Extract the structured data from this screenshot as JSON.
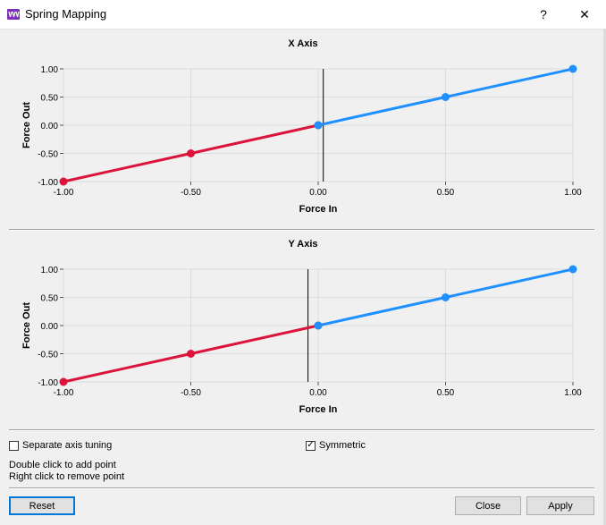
{
  "window": {
    "title": "Spring Mapping",
    "help_label": "?",
    "close_label": "✕",
    "icon": "app-logo-icon"
  },
  "colors": {
    "negative_series": "#dc143c",
    "positive_series": "#1e90ff",
    "grid": "#dcdcdc",
    "default_button_border": "#0078d7"
  },
  "chart_data": [
    {
      "type": "line",
      "title": "X Axis",
      "xlabel": "Force In",
      "ylabel": "Force Out",
      "xlim": [
        -1,
        1
      ],
      "ylim": [
        -1,
        1
      ],
      "xticks": [
        "-1.00",
        "-0.50",
        "0.00",
        "0.50",
        "1.00"
      ],
      "yticks": [
        "1.00",
        "0.50",
        "0.00",
        "-0.50",
        "-1.00"
      ],
      "grid": true,
      "cursor_x": 0.02,
      "series": [
        {
          "color": "#dc143c",
          "x": [
            -1,
            -0.5,
            0
          ],
          "y": [
            -1,
            -0.5,
            0
          ]
        },
        {
          "color": "#1e90ff",
          "x": [
            0,
            0.5,
            1
          ],
          "y": [
            0,
            0.5,
            1
          ]
        }
      ]
    },
    {
      "type": "line",
      "title": "Y Axis",
      "xlabel": "Force In",
      "ylabel": "Force Out",
      "xlim": [
        -1,
        1
      ],
      "ylim": [
        -1,
        1
      ],
      "xticks": [
        "-1.00",
        "-0.50",
        "0.00",
        "0.50",
        "1.00"
      ],
      "yticks": [
        "1.00",
        "0.50",
        "0.00",
        "-0.50",
        "-1.00"
      ],
      "grid": true,
      "cursor_x": -0.04,
      "series": [
        {
          "color": "#dc143c",
          "x": [
            -1,
            -0.5,
            0
          ],
          "y": [
            -1,
            -0.5,
            0
          ]
        },
        {
          "color": "#1e90ff",
          "x": [
            0,
            0.5,
            1
          ],
          "y": [
            0,
            0.5,
            1
          ]
        }
      ]
    }
  ],
  "options": {
    "separate_axis": {
      "label": "Separate axis tuning",
      "checked": false,
      "mark": ""
    },
    "symmetric": {
      "label": "Symmetric",
      "checked": true,
      "mark": "✓"
    }
  },
  "hints": {
    "line1": "Double click to add point",
    "line2": "Right click to remove point"
  },
  "buttons": {
    "reset": "Reset",
    "close": "Close",
    "apply": "Apply"
  }
}
